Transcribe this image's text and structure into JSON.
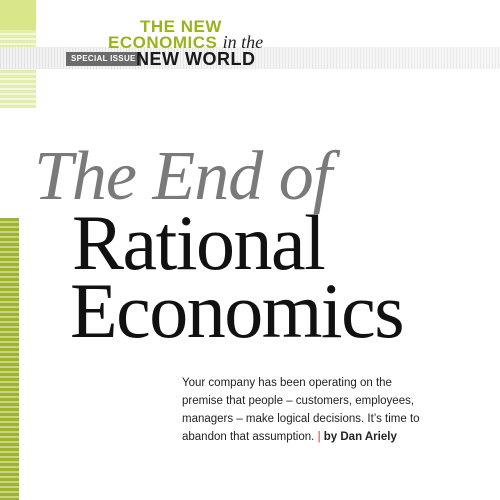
{
  "masthead": {
    "line1": "THE NEW",
    "line2_bold": "ECONOMICS",
    "line2_italic": "in the",
    "special_issue": "SPECIAL ISSUE",
    "line3": "NEW WORLD"
  },
  "headline": {
    "line1": "The End of",
    "line2": "Rational",
    "line3": "Economics"
  },
  "deck": {
    "text": "Your company has been operating on the premise that people – customers, employees, managers – make logical decisions. It’s time to abandon that assumption.",
    "separator": "|",
    "byline": "by Dan Ariely"
  },
  "colors": {
    "accent_green": "#9cb21c",
    "separator_red": "#d0342c",
    "headline_gray": "#7a7a7a",
    "headline_black": "#111111"
  }
}
